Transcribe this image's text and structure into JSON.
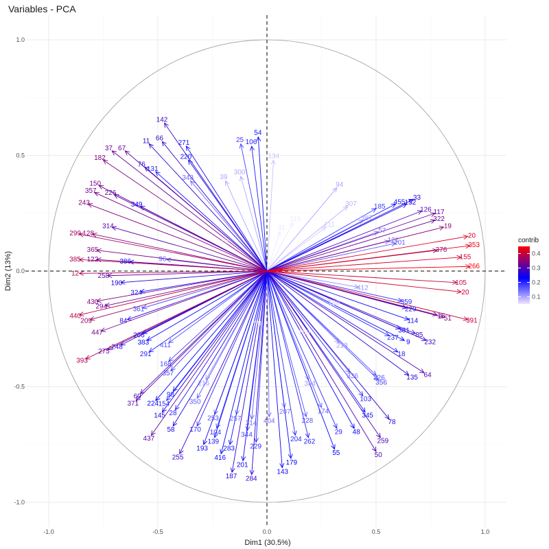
{
  "chart_data": {
    "type": "scatter",
    "title": "Variables - PCA",
    "xlabel": "Dim1 (30.5%)",
    "ylabel": "Dim2 (13%)",
    "xlim": [
      -1.1,
      1.1
    ],
    "ylim": [
      -1.1,
      1.1
    ],
    "x_ticks": [
      "-1.0",
      "-0.5",
      "0.0",
      "0.5",
      "1.0"
    ],
    "y_ticks": [
      "-1.0",
      "-0.5",
      "0.0",
      "0.5",
      "1.0"
    ],
    "x_tick_values": [
      -1.0,
      -0.5,
      0.0,
      0.5,
      1.0
    ],
    "y_tick_values": [
      -1.0,
      -0.5,
      0.0,
      0.5,
      1.0
    ],
    "grid": true,
    "correlation_circle": true,
    "reference_lines": [
      0,
      0
    ],
    "legend": {
      "title": "contrib",
      "placement": "right",
      "ticks": [
        "0.4",
        "0.3",
        "0.2",
        "0.1"
      ],
      "tick_values": [
        0.4,
        0.3,
        0.2,
        0.1
      ],
      "range": [
        0.05,
        0.45
      ],
      "colors": [
        "#f0e6ff",
        "#0000ff",
        "#ff0000"
      ]
    },
    "variables": [
      {
        "label": "142",
        "x": -0.47,
        "y": 0.64,
        "contrib": 0.28
      },
      {
        "label": "54",
        "x": -0.04,
        "y": 0.58,
        "contrib": 0.22
      },
      {
        "label": "106",
        "x": -0.07,
        "y": 0.54,
        "contrib": 0.21
      },
      {
        "label": "25",
        "x": -0.12,
        "y": 0.55,
        "contrib": 0.18
      },
      {
        "label": "11",
        "x": -0.54,
        "y": 0.55,
        "contrib": 0.27
      },
      {
        "label": "66",
        "x": -0.48,
        "y": 0.56,
        "contrib": 0.27
      },
      {
        "label": "271",
        "x": -0.37,
        "y": 0.54,
        "contrib": 0.22
      },
      {
        "label": "37",
        "x": -0.71,
        "y": 0.52,
        "contrib": 0.32
      },
      {
        "label": "67",
        "x": -0.65,
        "y": 0.52,
        "contrib": 0.32
      },
      {
        "label": "220",
        "x": -0.36,
        "y": 0.48,
        "contrib": 0.22
      },
      {
        "label": "134",
        "x": 0.03,
        "y": 0.48,
        "contrib": 0.08
      },
      {
        "label": "182",
        "x": -0.75,
        "y": 0.48,
        "contrib": 0.34
      },
      {
        "label": "76",
        "x": -0.56,
        "y": 0.45,
        "contrib": 0.26
      },
      {
        "label": "131",
        "x": -0.51,
        "y": 0.43,
        "contrib": 0.21
      },
      {
        "label": "39",
        "x": -0.19,
        "y": 0.39,
        "contrib": 0.1
      },
      {
        "label": "300",
        "x": -0.12,
        "y": 0.41,
        "contrib": 0.1
      },
      {
        "label": "150",
        "x": -0.77,
        "y": 0.37,
        "contrib": 0.33
      },
      {
        "label": "357",
        "x": -0.79,
        "y": 0.34,
        "contrib": 0.33
      },
      {
        "label": "226",
        "x": -0.7,
        "y": 0.33,
        "contrib": 0.31
      },
      {
        "label": "348",
        "x": -0.35,
        "y": 0.39,
        "contrib": 0.15
      },
      {
        "label": "94",
        "x": 0.32,
        "y": 0.36,
        "contrib": 0.1
      },
      {
        "label": "243",
        "x": -0.82,
        "y": 0.29,
        "contrib": 0.34
      },
      {
        "label": "349",
        "x": -0.58,
        "y": 0.28,
        "contrib": 0.24
      },
      {
        "label": "455",
        "x": 0.59,
        "y": 0.29,
        "contrib": 0.22
      },
      {
        "label": "152",
        "x": 0.64,
        "y": 0.29,
        "contrib": 0.24
      },
      {
        "label": "33",
        "x": 0.67,
        "y": 0.31,
        "contrib": 0.26
      },
      {
        "label": "185",
        "x": 0.5,
        "y": 0.27,
        "contrib": 0.18
      },
      {
        "label": "126",
        "x": 0.71,
        "y": 0.26,
        "contrib": 0.3
      },
      {
        "label": "117",
        "x": 0.77,
        "y": 0.25,
        "contrib": 0.32
      },
      {
        "label": "322",
        "x": 0.77,
        "y": 0.22,
        "contrib": 0.32
      },
      {
        "label": "19",
        "x": 0.81,
        "y": 0.19,
        "contrib": 0.35
      },
      {
        "label": "20",
        "x": 0.92,
        "y": 0.15,
        "contrib": 0.42
      },
      {
        "label": "299",
        "x": -0.86,
        "y": 0.16,
        "contrib": 0.37
      },
      {
        "label": "128",
        "x": -0.8,
        "y": 0.16,
        "contrib": 0.35
      },
      {
        "label": "314",
        "x": -0.71,
        "y": 0.19,
        "contrib": 0.3
      },
      {
        "label": "353",
        "x": 0.93,
        "y": 0.11,
        "contrib": 0.43
      },
      {
        "label": "376",
        "x": 0.78,
        "y": 0.09,
        "contrib": 0.35
      },
      {
        "label": "365",
        "x": -0.78,
        "y": 0.09,
        "contrib": 0.34
      },
      {
        "label": "155",
        "x": 0.89,
        "y": 0.06,
        "contrib": 0.41
      },
      {
        "label": "385",
        "x": -0.86,
        "y": 0.05,
        "contrib": 0.38
      },
      {
        "label": "122",
        "x": -0.78,
        "y": 0.05,
        "contrib": 0.33
      },
      {
        "label": "386",
        "x": -0.63,
        "y": 0.04,
        "contrib": 0.24
      },
      {
        "label": "266",
        "x": 0.93,
        "y": 0.02,
        "contrib": 0.44
      },
      {
        "label": "12",
        "x": -0.86,
        "y": -0.01,
        "contrib": 0.38
      },
      {
        "label": "258",
        "x": -0.73,
        "y": -0.02,
        "contrib": 0.31
      },
      {
        "label": "190",
        "x": -0.67,
        "y": -0.05,
        "contrib": 0.26
      },
      {
        "label": "105",
        "x": 0.87,
        "y": -0.05,
        "contrib": 0.4
      },
      {
        "label": "20",
        "x": 0.89,
        "y": -0.09,
        "contrib": 0.41
      },
      {
        "label": "324",
        "x": -0.58,
        "y": -0.09,
        "contrib": 0.22
      },
      {
        "label": "430",
        "x": -0.78,
        "y": -0.13,
        "contrib": 0.34
      },
      {
        "label": "294",
        "x": -0.74,
        "y": -0.15,
        "contrib": 0.32
      },
      {
        "label": "440",
        "x": -0.86,
        "y": -0.19,
        "contrib": 0.39
      },
      {
        "label": "209",
        "x": -0.81,
        "y": -0.21,
        "contrib": 0.36
      },
      {
        "label": "84",
        "x": -0.64,
        "y": -0.21,
        "contrib": 0.26
      },
      {
        "label": "114",
        "x": 0.65,
        "y": -0.21,
        "contrib": 0.22
      },
      {
        "label": "15",
        "x": 0.78,
        "y": -0.19,
        "contrib": 0.32
      },
      {
        "label": "51",
        "x": 0.81,
        "y": -0.2,
        "contrib": 0.34
      },
      {
        "label": "391",
        "x": 0.92,
        "y": -0.21,
        "contrib": 0.4
      },
      {
        "label": "447",
        "x": -0.76,
        "y": -0.26,
        "contrib": 0.33
      },
      {
        "label": "206",
        "x": -0.57,
        "y": -0.27,
        "contrib": 0.24
      },
      {
        "label": "381",
        "x": 0.61,
        "y": -0.25,
        "contrib": 0.22
      },
      {
        "label": "85",
        "x": 0.68,
        "y": -0.27,
        "contrib": 0.27
      },
      {
        "label": "237",
        "x": 0.56,
        "y": -0.28,
        "contrib": 0.2
      },
      {
        "label": "9",
        "x": 0.63,
        "y": -0.3,
        "contrib": 0.23
      },
      {
        "label": "232",
        "x": 0.73,
        "y": -0.3,
        "contrib": 0.28
      },
      {
        "label": "248",
        "x": -0.67,
        "y": -0.32,
        "contrib": 0.27
      },
      {
        "label": "383",
        "x": -0.55,
        "y": -0.3,
        "contrib": 0.23
      },
      {
        "label": "275",
        "x": -0.73,
        "y": -0.34,
        "contrib": 0.3
      },
      {
        "label": "291",
        "x": -0.54,
        "y": -0.35,
        "contrib": 0.21
      },
      {
        "label": "18",
        "x": 0.6,
        "y": -0.35,
        "contrib": 0.21
      },
      {
        "label": "393",
        "x": -0.83,
        "y": -0.38,
        "contrib": 0.38
      },
      {
        "label": "168",
        "x": -0.45,
        "y": -0.39,
        "contrib": 0.18
      },
      {
        "label": "357",
        "x": -0.44,
        "y": -0.43,
        "contrib": 0.18
      },
      {
        "label": "64",
        "x": 0.72,
        "y": -0.44,
        "contrib": 0.3
      },
      {
        "label": "135",
        "x": 0.65,
        "y": -0.45,
        "contrib": 0.26
      },
      {
        "label": "356",
        "x": 0.51,
        "y": -0.47,
        "contrib": 0.18
      },
      {
        "label": "69",
        "x": -0.58,
        "y": -0.53,
        "contrib": 0.29
      },
      {
        "label": "371",
        "x": -0.6,
        "y": -0.56,
        "contrib": 0.31
      },
      {
        "label": "98",
        "x": -0.43,
        "y": -0.52,
        "contrib": 0.21
      },
      {
        "label": "103",
        "x": 0.44,
        "y": -0.54,
        "contrib": 0.2
      },
      {
        "label": "145",
        "x": -0.48,
        "y": -0.61,
        "contrib": 0.25
      },
      {
        "label": "345",
        "x": 0.45,
        "y": -0.61,
        "contrib": 0.22
      },
      {
        "label": "78",
        "x": 0.56,
        "y": -0.64,
        "contrib": 0.27
      },
      {
        "label": "58",
        "x": -0.43,
        "y": -0.67,
        "contrib": 0.25
      },
      {
        "label": "437",
        "x": -0.53,
        "y": -0.71,
        "contrib": 0.31
      },
      {
        "label": "48",
        "x": 0.4,
        "y": -0.68,
        "contrib": 0.23
      },
      {
        "label": "259",
        "x": 0.52,
        "y": -0.72,
        "contrib": 0.29
      },
      {
        "label": "29",
        "x": 0.32,
        "y": -0.68,
        "contrib": 0.2
      },
      {
        "label": "55",
        "x": 0.31,
        "y": -0.77,
        "contrib": 0.23
      },
      {
        "label": "50",
        "x": 0.5,
        "y": -0.78,
        "contrib": 0.3
      },
      {
        "label": "255",
        "x": -0.4,
        "y": -0.79,
        "contrib": 0.28
      },
      {
        "label": "179",
        "x": 0.11,
        "y": -0.81,
        "contrib": 0.23
      },
      {
        "label": "143",
        "x": 0.07,
        "y": -0.85,
        "contrib": 0.24
      },
      {
        "label": "201",
        "x": -0.11,
        "y": -0.82,
        "contrib": 0.24
      },
      {
        "label": "187",
        "x": -0.16,
        "y": -0.87,
        "contrib": 0.27
      },
      {
        "label": "284",
        "x": -0.07,
        "y": -0.88,
        "contrib": 0.27
      },
      {
        "label": "416",
        "x": -0.21,
        "y": -0.79,
        "contrib": 0.23
      },
      {
        "label": "193",
        "x": -0.29,
        "y": -0.75,
        "contrib": 0.24
      },
      {
        "label": "283",
        "x": -0.17,
        "y": -0.75,
        "contrib": 0.22
      },
      {
        "label": "139",
        "x": -0.24,
        "y": -0.72,
        "contrib": 0.21
      },
      {
        "label": "194",
        "x": -0.23,
        "y": -0.68,
        "contrib": 0.19
      },
      {
        "label": "170",
        "x": -0.32,
        "y": -0.67,
        "contrib": 0.2
      },
      {
        "label": "253",
        "x": -0.24,
        "y": -0.62,
        "contrib": 0.17
      },
      {
        "label": "28",
        "x": -0.42,
        "y": -0.6,
        "contrib": 0.21
      },
      {
        "label": "224",
        "x": -0.51,
        "y": -0.56,
        "contrib": 0.23
      },
      {
        "label": "154",
        "x": -0.46,
        "y": -0.56,
        "contrib": 0.2
      },
      {
        "label": "350",
        "x": -0.32,
        "y": -0.55,
        "contrib": 0.16
      },
      {
        "label": "216",
        "x": -0.28,
        "y": -0.47,
        "contrib": 0.12
      },
      {
        "label": "344",
        "x": -0.09,
        "y": -0.69,
        "contrib": 0.18
      },
      {
        "label": "314",
        "x": -0.07,
        "y": -0.64,
        "contrib": 0.16
      },
      {
        "label": "229",
        "x": -0.05,
        "y": -0.74,
        "contrib": 0.2
      },
      {
        "label": "257",
        "x": -0.14,
        "y": -0.62,
        "contrib": 0.15
      },
      {
        "label": "404",
        "x": 0.01,
        "y": -0.63,
        "contrib": 0.15
      },
      {
        "label": "207",
        "x": 0.08,
        "y": -0.59,
        "contrib": 0.14
      },
      {
        "label": "204",
        "x": 0.13,
        "y": -0.71,
        "contrib": 0.2
      },
      {
        "label": "228",
        "x": 0.18,
        "y": -0.63,
        "contrib": 0.17
      },
      {
        "label": "262",
        "x": 0.19,
        "y": -0.72,
        "contrib": 0.21
      },
      {
        "label": "174",
        "x": 0.25,
        "y": -0.59,
        "contrib": 0.16
      },
      {
        "label": "384",
        "x": 0.19,
        "y": -0.47,
        "contrib": 0.11
      },
      {
        "label": "336",
        "x": 0.38,
        "y": -0.44,
        "contrib": 0.14
      },
      {
        "label": "57",
        "x": 0.51,
        "y": 0.17,
        "contrib": 0.14
      },
      {
        "label": "387",
        "x": 0.44,
        "y": 0.22,
        "contrib": 0.11
      },
      {
        "label": "307",
        "x": 0.37,
        "y": 0.28,
        "contrib": 0.09
      },
      {
        "label": "121",
        "x": 0.56,
        "y": 0.13,
        "contrib": 0.15
      },
      {
        "label": "101",
        "x": 0.59,
        "y": 0.12,
        "contrib": 0.16
      },
      {
        "label": "211",
        "x": 0.27,
        "y": 0.19,
        "contrib": 0.07
      },
      {
        "label": "119",
        "x": 0.12,
        "y": 0.21,
        "contrib": 0.05
      },
      {
        "label": "96",
        "x": -0.46,
        "y": 0.05,
        "contrib": 0.16
      },
      {
        "label": "361",
        "x": -0.57,
        "y": -0.16,
        "contrib": 0.18
      },
      {
        "label": "411",
        "x": -0.45,
        "y": -0.31,
        "contrib": 0.17
      },
      {
        "label": "226",
        "x": 0.5,
        "y": -0.45,
        "contrib": 0.17
      },
      {
        "label": "359",
        "x": 0.62,
        "y": -0.13,
        "contrib": 0.2
      },
      {
        "label": "229",
        "x": 0.64,
        "y": -0.16,
        "contrib": 0.21
      },
      {
        "label": "213",
        "x": 0.33,
        "y": -0.31,
        "contrib": 0.11
      },
      {
        "label": "160",
        "x": 0.16,
        "y": -0.25,
        "contrib": 0.05
      },
      {
        "label": "88",
        "x": -0.04,
        "y": -0.21,
        "contrib": 0.04
      },
      {
        "label": "31",
        "x": 0.06,
        "y": 0.17,
        "contrib": 0.04
      },
      {
        "label": "180",
        "x": 0.29,
        "y": -0.13,
        "contrib": 0.07
      },
      {
        "label": "70",
        "x": -0.18,
        "y": 0.12,
        "contrib": 0.05
      },
      {
        "label": "412",
        "x": 0.42,
        "y": -0.07,
        "contrib": 0.12
      }
    ]
  }
}
